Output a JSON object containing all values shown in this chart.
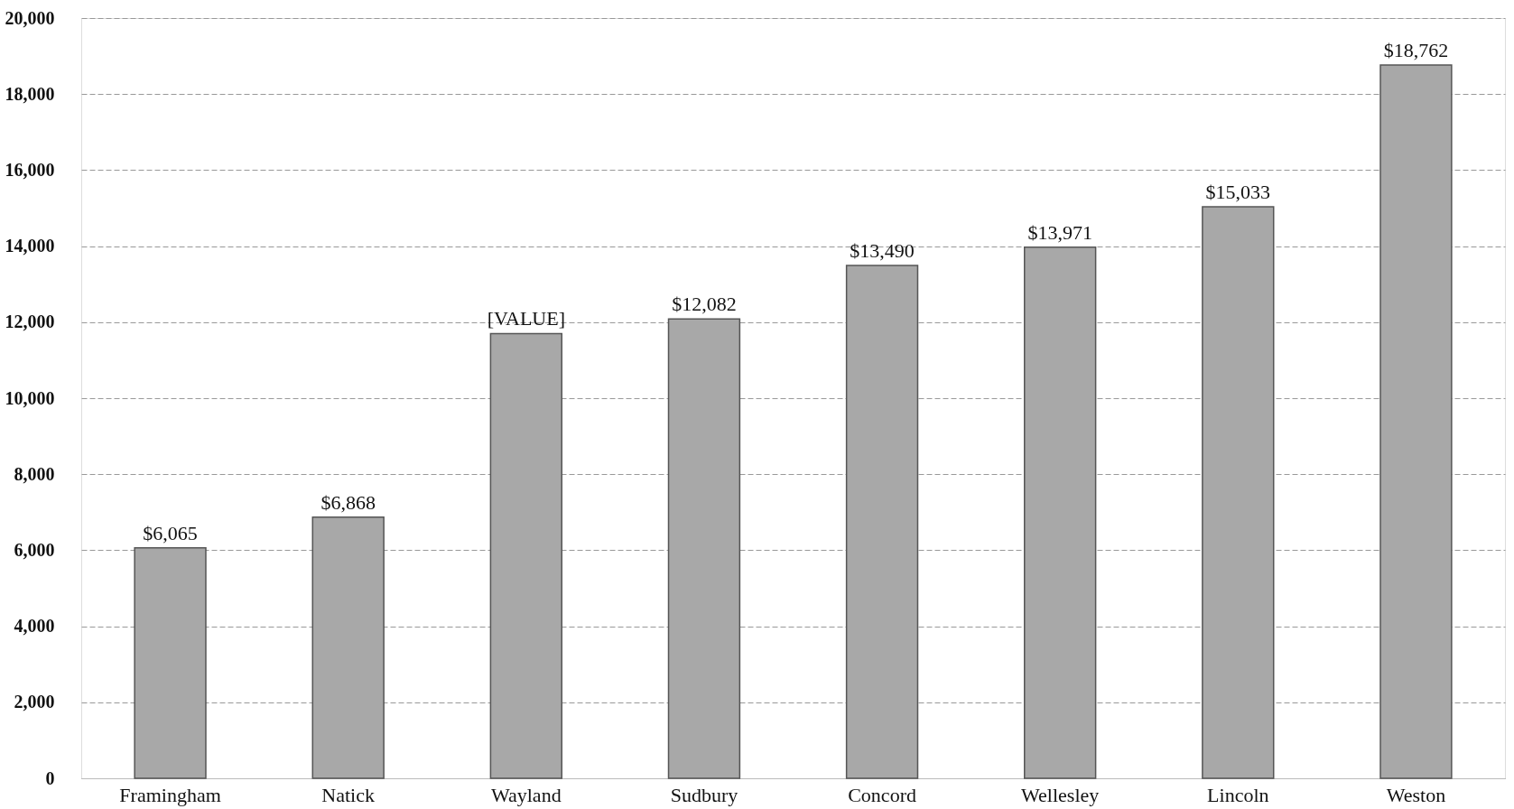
{
  "chart_data": {
    "type": "bar",
    "categories": [
      "Framingham",
      "Natick",
      "Wayland",
      "Sudbury",
      "Concord",
      "Wellesley",
      "Lincoln",
      "Weston"
    ],
    "values": [
      6065,
      6868,
      11700,
      12082,
      13490,
      13971,
      15033,
      18762
    ],
    "value_labels": [
      "$6,065",
      "$6,868",
      "[VALUE]",
      "$12,082",
      "$13,490",
      "$13,971",
      "$15,033",
      "$18,762"
    ],
    "color": "#a8a8a8",
    "ylim": [
      0,
      20000
    ],
    "yticks": [
      0,
      {
        "value": 2000,
        "label": "2,000"
      },
      {
        "value": 4000,
        "label": "4,000"
      },
      {
        "value": 6000,
        "label": "6,000"
      },
      {
        "value": 8000,
        "label": "8,000"
      },
      {
        "value": 10000,
        "label": "10,000"
      },
      {
        "value": 12000,
        "label": "12,000"
      },
      {
        "value": 14000,
        "label": "14,000"
      },
      {
        "value": 16000,
        "label": "16,000"
      },
      {
        "value": 18000,
        "label": "18,000"
      },
      {
        "value": 20000,
        "label": "20,000"
      }
    ],
    "grid": "y"
  }
}
